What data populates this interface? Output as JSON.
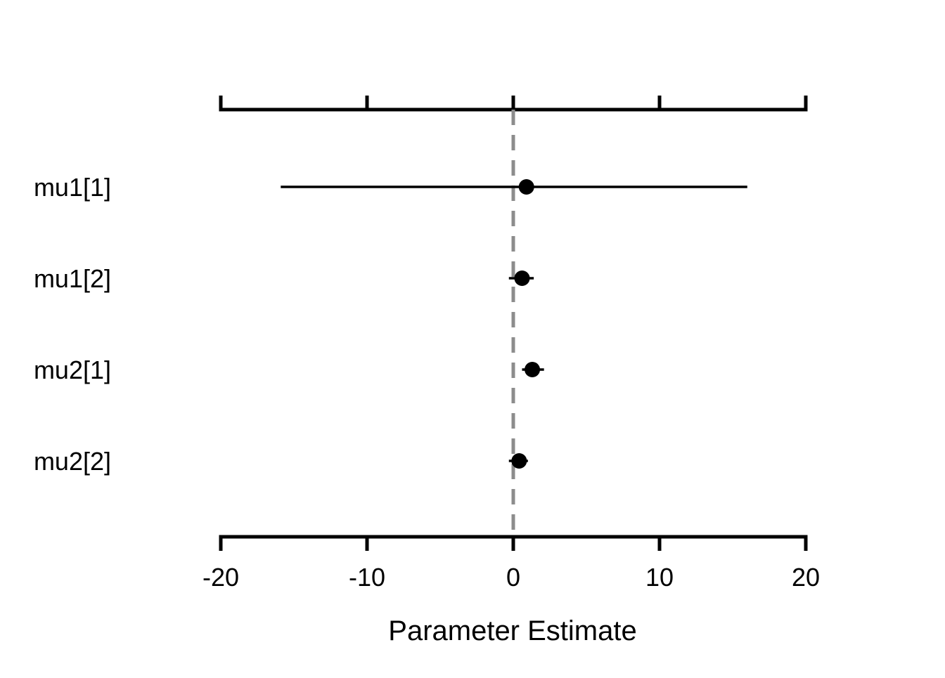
{
  "chart_data": {
    "type": "forest",
    "xlabel": "Parameter Estimate",
    "xlim": [
      -20,
      20
    ],
    "xticks": [
      -20,
      -10,
      0,
      10,
      20
    ],
    "reference_line": {
      "x": 0,
      "style": "dashed",
      "color": "#8c8c8c"
    },
    "parameters": [
      {
        "name": "mu1[1]",
        "estimate": 0.9,
        "lower": -15.9,
        "upper": 16.0
      },
      {
        "name": "mu1[2]",
        "estimate": 0.6,
        "lower": -0.3,
        "upper": 1.4
      },
      {
        "name": "mu2[1]",
        "estimate": 1.3,
        "lower": 0.6,
        "upper": 2.1
      },
      {
        "name": "mu2[2]",
        "estimate": 0.4,
        "lower": -0.3,
        "upper": 1.0
      }
    ],
    "axes": {
      "top_axis": true,
      "bottom_axis": true,
      "grid": false
    },
    "colors": {
      "point": "#000000",
      "interval": "#000000",
      "axis": "#000000"
    }
  }
}
